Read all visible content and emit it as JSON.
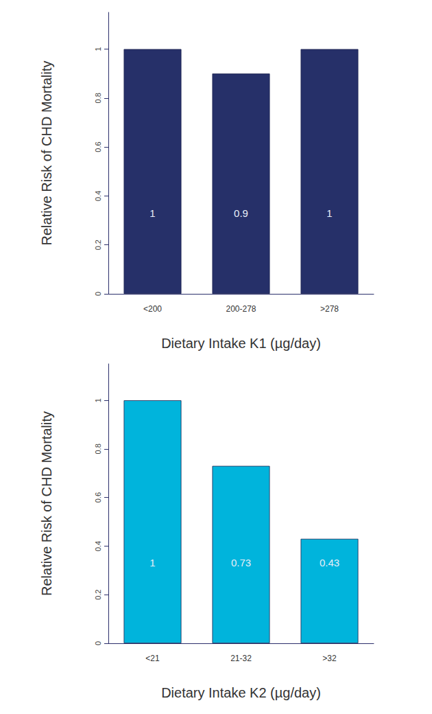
{
  "chart_data": [
    {
      "type": "bar",
      "x_label": "Dietary Intake K1 (µg/day)",
      "y_label": "Relative Risk of CHD Mortality",
      "categories": [
        "<200",
        "200-278",
        ">278"
      ],
      "values": [
        1,
        0.9,
        1
      ],
      "color": "#263069",
      "ylim": [
        0,
        1.15
      ],
      "yticks": [
        0,
        0.2,
        0.4,
        0.6,
        0.8,
        1
      ],
      "data_labels": true,
      "grid": false
    },
    {
      "type": "bar",
      "x_label": "Dietary Intake K2 (µg/day)",
      "y_label": "Relative Risk of CHD Mortality",
      "categories": [
        "<21",
        "21-32",
        ">32"
      ],
      "values": [
        1,
        0.73,
        0.43
      ],
      "color": "#00b4dc",
      "ylim": [
        0,
        1.15
      ],
      "yticks": [
        0,
        0.2,
        0.4,
        0.6,
        0.8,
        1
      ],
      "data_labels": true,
      "grid": false
    }
  ]
}
